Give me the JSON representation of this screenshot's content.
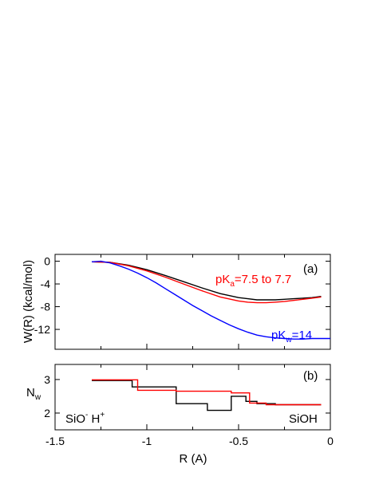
{
  "chart_data": [
    {
      "type": "line",
      "panel_label": "(a)",
      "ylabel": "W(R)  (kcal/mol)",
      "xlim": [
        -1.5,
        0
      ],
      "ylim": [
        -15.5,
        1.2
      ],
      "yticks": [
        0,
        -4,
        -8,
        -12
      ],
      "ytick_labels": [
        "0",
        "-4",
        "-8",
        "-12"
      ],
      "grid": false,
      "series": [
        {
          "color": "#000000",
          "x": [
            -1.3,
            -1.2,
            -1.1,
            -1.0,
            -0.9,
            -0.8,
            -0.7,
            -0.6,
            -0.5,
            -0.45,
            -0.4,
            -0.35,
            -0.3,
            -0.25,
            -0.2,
            -0.15,
            -0.1,
            -0.05
          ],
          "y": [
            -0.1,
            -0.2,
            -0.7,
            -1.5,
            -2.5,
            -3.6,
            -4.7,
            -5.7,
            -6.4,
            -6.6,
            -6.8,
            -6.8,
            -6.8,
            -6.7,
            -6.6,
            -6.5,
            -6.4,
            -6.2
          ]
        },
        {
          "color": "#ff0000",
          "x": [
            -1.3,
            -1.2,
            -1.1,
            -1.0,
            -0.9,
            -0.8,
            -0.7,
            -0.6,
            -0.5,
            -0.45,
            -0.4,
            -0.35,
            -0.3,
            -0.25,
            -0.2,
            -0.15,
            -0.1,
            -0.05
          ],
          "y": [
            -0.1,
            -0.2,
            -0.8,
            -1.7,
            -2.8,
            -4.0,
            -5.2,
            -6.3,
            -7.0,
            -7.2,
            -7.3,
            -7.3,
            -7.2,
            -7.1,
            -6.9,
            -6.7,
            -6.5,
            -6.3
          ]
        },
        {
          "color": "#0000ff",
          "x": [
            -1.3,
            -1.25,
            -1.2,
            -1.15,
            -1.1,
            -1.05,
            -1.0,
            -0.95,
            -0.9,
            -0.85,
            -0.8,
            -0.75,
            -0.7,
            -0.65,
            -0.6,
            -0.55,
            -0.5,
            -0.45,
            -0.4,
            -0.35,
            -0.3,
            -0.25,
            -0.2,
            -0.15,
            -0.1,
            -0.05,
            0.0
          ],
          "y": [
            -0.1,
            0.0,
            -0.3,
            -0.8,
            -1.4,
            -2.1,
            -2.9,
            -3.8,
            -4.8,
            -5.8,
            -6.8,
            -7.8,
            -8.7,
            -9.6,
            -10.4,
            -11.2,
            -11.9,
            -12.5,
            -13.0,
            -13.3,
            -13.5,
            -13.6,
            -13.7,
            -13.7,
            -13.6,
            -13.6,
            -13.6
          ]
        }
      ],
      "annotations": [
        {
          "color": "#ff0000",
          "base": "pK",
          "sub": "a",
          "rest": "=7.5 to 7.7",
          "x": -0.6,
          "y": -6.2
        },
        {
          "color": "#0000ff",
          "base": "pK",
          "sub": "w",
          "rest": "=14",
          "x": -0.3,
          "y": -12.6
        }
      ]
    },
    {
      "type": "line",
      "step": true,
      "panel_label": "(b)",
      "ylabel": "N",
      "ylabel_sub": "w",
      "xlabel": "R (A)",
      "xlim": [
        -1.5,
        0
      ],
      "ylim": [
        1.5,
        3.45
      ],
      "yticks": [
        2,
        3
      ],
      "ytick_labels": [
        "2",
        "3"
      ],
      "xticks": [
        -1.5,
        -1,
        -0.5,
        0
      ],
      "xtick_labels": [
        "-1.5",
        "-1",
        "-0.5",
        "0"
      ],
      "grid": false,
      "series": [
        {
          "color": "#000000",
          "x": [
            -1.3,
            -1.08,
            -1.08,
            -0.84,
            -0.84,
            -0.67,
            -0.67,
            -0.54,
            -0.54,
            -0.46,
            -0.46,
            -0.4,
            -0.4,
            -0.3,
            -0.3,
            -0.05
          ],
          "y": [
            2.97,
            2.97,
            2.78,
            2.78,
            2.28,
            2.28,
            2.08,
            2.08,
            2.5,
            2.5,
            2.35,
            2.35,
            2.28,
            2.28,
            2.25,
            2.25
          ]
        },
        {
          "color": "#ff0000",
          "x": [
            -1.3,
            -1.05,
            -1.05,
            -0.84,
            -0.84,
            -0.54,
            -0.54,
            -0.44,
            -0.44,
            -0.35,
            -0.35,
            -0.05
          ],
          "y": [
            2.99,
            2.99,
            2.68,
            2.68,
            2.65,
            2.65,
            2.6,
            2.6,
            2.3,
            2.3,
            2.25,
            2.25
          ]
        }
      ],
      "labels": [
        {
          "base": "SiO",
          "sup": "-",
          "mid": " H",
          "sup2": "+"
        },
        {
          "text": "SiOH"
        }
      ]
    }
  ]
}
